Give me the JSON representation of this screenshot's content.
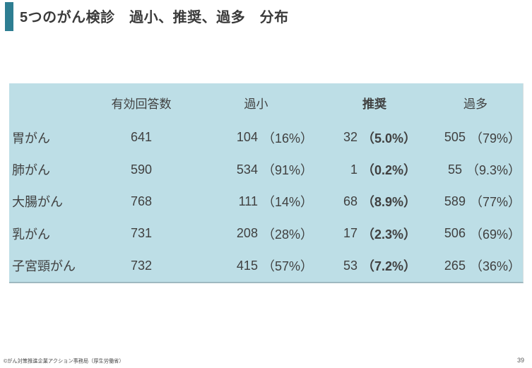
{
  "slide": {
    "title": "5つのがん検診　過小、推奨、過多　分布",
    "footer_credit": "©がん対策推進企業アクション事務局（厚生労働省）",
    "page_number": "39"
  },
  "colors": {
    "accent_teal": "#2E7E92",
    "table_background": "#BDDEE6",
    "body_text": "#404040"
  },
  "table": {
    "columns": [
      "有効回答数",
      "過小",
      "推奨",
      "過多"
    ],
    "rows": [
      {
        "label": "胃がん",
        "valid": "641",
        "under_n": "104",
        "under_p": "（16%）",
        "rec_n": "32",
        "rec_p": "（5.0%）",
        "over_n": "505",
        "over_p": "（79%）"
      },
      {
        "label": "肺がん",
        "valid": "590",
        "under_n": "534",
        "under_p": "（91%）",
        "rec_n": "1",
        "rec_p": "（0.2%）",
        "over_n": "55",
        "over_p": "（9.3%）"
      },
      {
        "label": "大腸がん",
        "valid": "768",
        "under_n": "111",
        "under_p": "（14%）",
        "rec_n": "68",
        "rec_p": "（8.9%）",
        "over_n": "589",
        "over_p": "（77%）"
      },
      {
        "label": "乳がん",
        "valid": "731",
        "under_n": "208",
        "under_p": "（28%）",
        "rec_n": "17",
        "rec_p": "（2.3%）",
        "over_n": "506",
        "over_p": "（69%）"
      },
      {
        "label": "子宮頸がん",
        "valid": "732",
        "under_n": "415",
        "under_p": "（57%）",
        "rec_n": "53",
        "rec_p": "（7.2%）",
        "over_n": "265",
        "over_p": "（36%）"
      }
    ]
  }
}
